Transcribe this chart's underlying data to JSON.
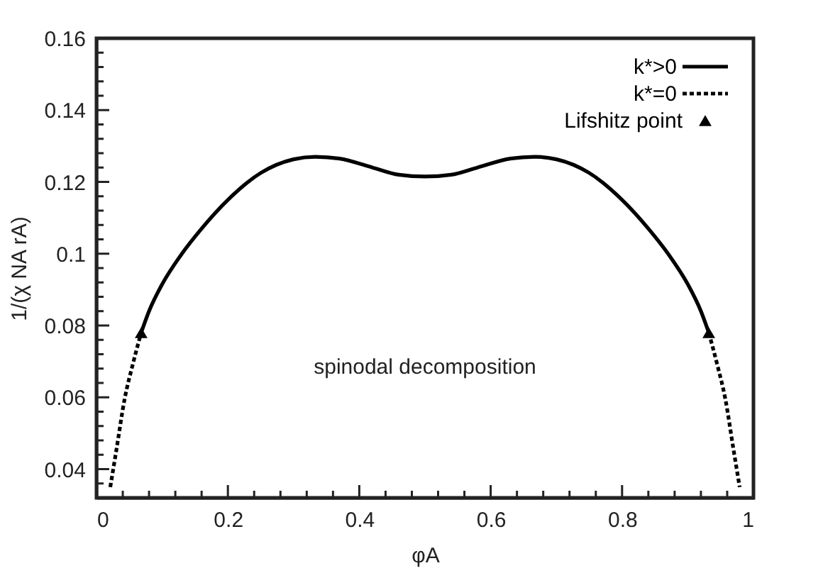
{
  "chart_data": {
    "type": "line",
    "xlabel": "φA",
    "ylabel": "1/(χ NA rA)",
    "xlim": [
      0,
      1
    ],
    "ylim": [
      0.032,
      0.16
    ],
    "xticks": [
      0,
      {
        "value": 0.04,
        "label": null
      },
      {
        "value": 0.08,
        "label": null
      },
      {
        "value": 0.12,
        "label": null
      },
      {
        "value": 0.16,
        "label": null
      },
      0.2,
      {
        "value": 0.24,
        "label": null
      },
      {
        "value": 0.28,
        "label": null
      },
      {
        "value": 0.32,
        "label": null
      },
      {
        "value": 0.36,
        "label": null
      },
      0.4,
      {
        "value": 0.44,
        "label": null
      },
      {
        "value": 0.48,
        "label": null
      },
      {
        "value": 0.52,
        "label": null
      },
      {
        "value": 0.56,
        "label": null
      },
      0.6,
      {
        "value": 0.64,
        "label": null
      },
      {
        "value": 0.68,
        "label": null
      },
      {
        "value": 0.72,
        "label": null
      },
      {
        "value": 0.76,
        "label": null
      },
      0.8,
      {
        "value": 0.84,
        "label": null
      },
      {
        "value": 0.88,
        "label": null
      },
      {
        "value": 0.92,
        "label": null
      },
      {
        "value": 0.96,
        "label": null
      },
      1
    ],
    "yticks": [
      {
        "value": 0.036,
        "label": null
      },
      0.04,
      {
        "value": 0.044,
        "label": null
      },
      {
        "value": 0.048,
        "label": null
      },
      {
        "value": 0.052,
        "label": null
      },
      {
        "value": 0.056,
        "label": null
      },
      0.06,
      {
        "value": 0.064,
        "label": null
      },
      {
        "value": 0.068,
        "label": null
      },
      {
        "value": 0.072,
        "label": null
      },
      {
        "value": 0.076,
        "label": null
      },
      0.08,
      {
        "value": 0.084,
        "label": null
      },
      {
        "value": 0.088,
        "label": null
      },
      {
        "value": 0.092,
        "label": null
      },
      {
        "value": 0.096,
        "label": null
      },
      {
        "value": 0.1,
        "label": "0.1"
      },
      {
        "value": 0.104,
        "label": null
      },
      {
        "value": 0.108,
        "label": null
      },
      {
        "value": 0.112,
        "label": null
      },
      {
        "value": 0.116,
        "label": null
      },
      0.12,
      {
        "value": 0.124,
        "label": null
      },
      {
        "value": 0.128,
        "label": null
      },
      {
        "value": 0.132,
        "label": null
      },
      {
        "value": 0.136,
        "label": null
      },
      0.14,
      {
        "value": 0.144,
        "label": null
      },
      {
        "value": 0.148,
        "label": null
      },
      {
        "value": 0.152,
        "label": null
      },
      {
        "value": 0.156,
        "label": null
      },
      0.16
    ],
    "grid": false,
    "legend": "top right",
    "series": [
      {
        "name": "k*>0",
        "line_style": "solid",
        "color": "#000000",
        "x": [
          0.068,
          0.08,
          0.1,
          0.13,
          0.16,
          0.2,
          0.25,
          0.3,
          0.333,
          0.37,
          0.42,
          0.46,
          0.5,
          0.54,
          0.58,
          0.63,
          0.667,
          0.7,
          0.75,
          0.8,
          0.84,
          0.87,
          0.9,
          0.92,
          0.932
        ],
        "values": [
          0.078,
          0.084,
          0.0915,
          0.1,
          0.107,
          0.115,
          0.1225,
          0.1263,
          0.127,
          0.1265,
          0.124,
          0.122,
          0.1215,
          0.122,
          0.124,
          0.1265,
          0.127,
          0.1263,
          0.1225,
          0.115,
          0.107,
          0.1,
          0.0915,
          0.084,
          0.078
        ]
      },
      {
        "name": "k*=0",
        "line_style": "dotted",
        "color": "#000000",
        "x": [
          0.021,
          0.03,
          0.043,
          0.055,
          0.068,
          0.5,
          0.932,
          0.945,
          0.957,
          0.97,
          0.979
        ],
        "values": [
          0.035,
          0.045,
          0.0597,
          0.069,
          0.078,
          null,
          0.078,
          0.069,
          0.0597,
          0.045,
          0.035
        ]
      },
      {
        "name": "Lifshitz point",
        "type": "scatter",
        "marker": "triangle",
        "color": "#000000",
        "x": [
          0.068,
          0.932
        ],
        "values": [
          0.078,
          0.078
        ]
      }
    ],
    "annotations": [
      "spinodal decomposition"
    ]
  }
}
